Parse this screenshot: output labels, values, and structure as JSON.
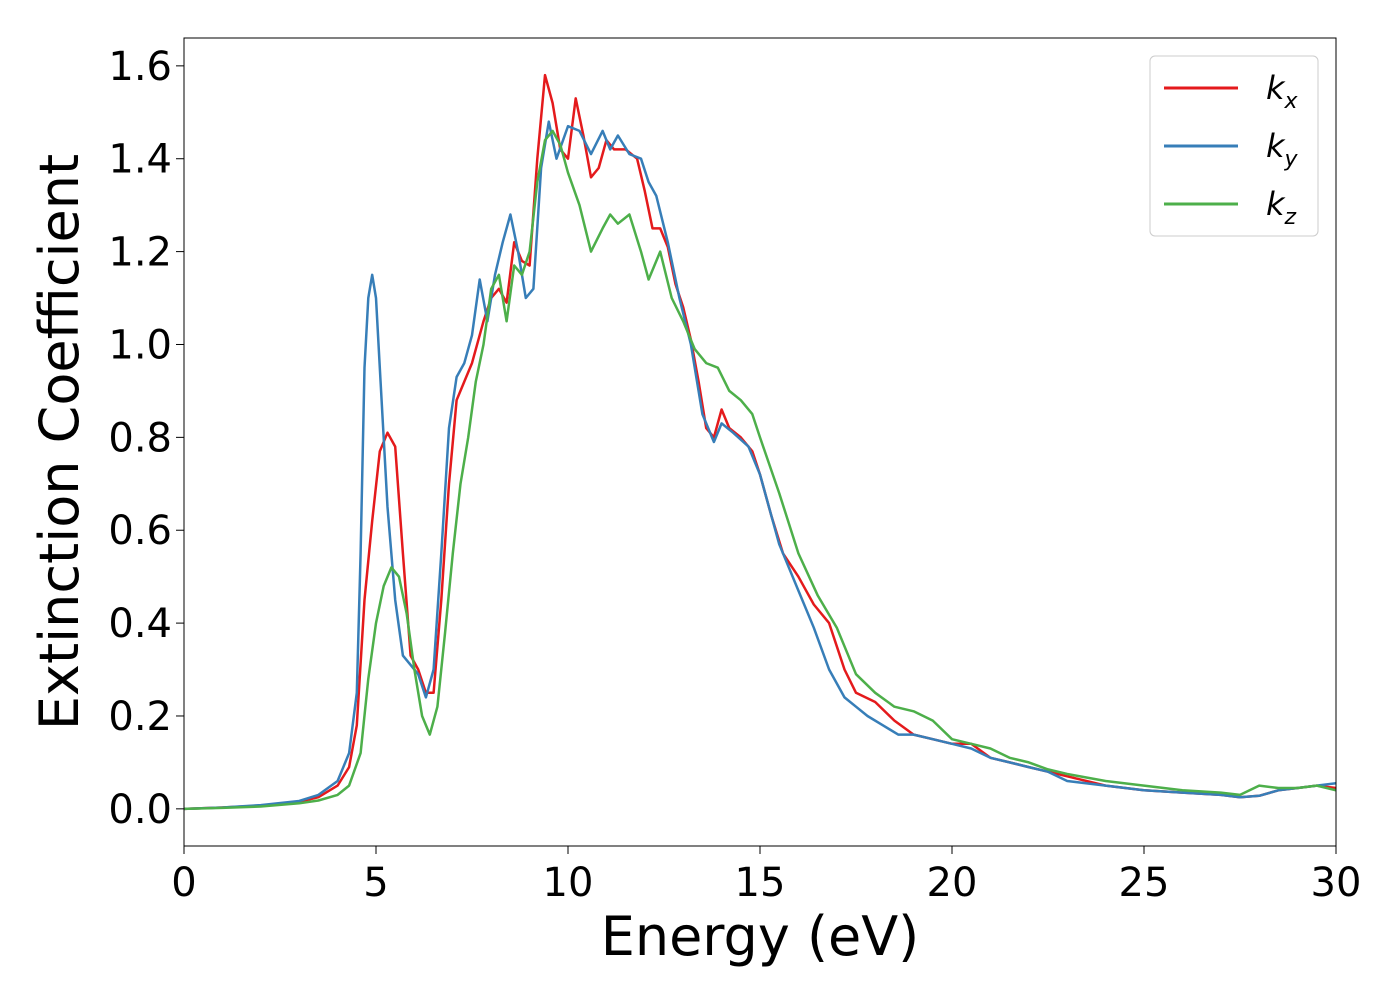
{
  "chart_data": {
    "type": "line",
    "title": "",
    "xlabel": "Energy (eV)",
    "ylabel": "Extinction Coefficient",
    "xlim": [
      0,
      30
    ],
    "ylim": [
      -0.08,
      1.66
    ],
    "xticks": [
      0,
      5,
      10,
      15,
      20,
      25,
      30
    ],
    "xtick_labels": [
      "0",
      "5",
      "10",
      "15",
      "20",
      "25",
      "30"
    ],
    "yticks": [
      0.0,
      0.2,
      0.4,
      0.6,
      0.8,
      1.0,
      1.2,
      1.4,
      1.6
    ],
    "ytick_labels": [
      "0.0",
      "0.2",
      "0.4",
      "0.6",
      "0.8",
      "1.0",
      "1.2",
      "1.4",
      "1.6"
    ],
    "grid": false,
    "legend_position": "top-right",
    "series": [
      {
        "name": "k_x",
        "label_base": "k",
        "label_sub": "x",
        "color": "#e41a1c",
        "x": [
          0,
          1,
          2,
          3,
          3.5,
          4,
          4.3,
          4.5,
          4.7,
          4.9,
          5.1,
          5.3,
          5.5,
          5.7,
          5.9,
          6.1,
          6.3,
          6.5,
          6.7,
          6.9,
          7.1,
          7.3,
          7.5,
          7.8,
          8.0,
          8.2,
          8.4,
          8.6,
          8.8,
          9.0,
          9.2,
          9.4,
          9.6,
          9.8,
          10.0,
          10.2,
          10.4,
          10.6,
          10.8,
          11.0,
          11.2,
          11.5,
          11.8,
          12.0,
          12.2,
          12.4,
          12.6,
          12.8,
          13.0,
          13.2,
          13.4,
          13.6,
          13.8,
          14.0,
          14.2,
          14.5,
          14.8,
          15.0,
          15.3,
          15.6,
          16.0,
          16.4,
          16.8,
          17.0,
          17.2,
          17.5,
          18.0,
          18.5,
          19.0,
          19.5,
          20.0,
          20.5,
          21.0,
          21.5,
          22.0,
          22.5,
          23.0,
          24.0,
          25.0,
          26.0,
          27.0,
          27.5,
          28.0,
          28.5,
          29.0,
          29.5,
          30.0
        ],
        "y": [
          0.0,
          0.003,
          0.007,
          0.015,
          0.025,
          0.05,
          0.09,
          0.18,
          0.45,
          0.62,
          0.77,
          0.81,
          0.78,
          0.55,
          0.33,
          0.3,
          0.25,
          0.25,
          0.45,
          0.7,
          0.88,
          0.92,
          0.96,
          1.05,
          1.1,
          1.12,
          1.09,
          1.22,
          1.18,
          1.17,
          1.4,
          1.58,
          1.52,
          1.42,
          1.4,
          1.53,
          1.45,
          1.36,
          1.38,
          1.44,
          1.42,
          1.42,
          1.4,
          1.33,
          1.25,
          1.25,
          1.21,
          1.13,
          1.08,
          1.01,
          0.92,
          0.82,
          0.8,
          0.86,
          0.82,
          0.8,
          0.77,
          0.72,
          0.63,
          0.55,
          0.5,
          0.44,
          0.4,
          0.35,
          0.3,
          0.25,
          0.23,
          0.19,
          0.16,
          0.15,
          0.14,
          0.14,
          0.11,
          0.1,
          0.09,
          0.08,
          0.07,
          0.05,
          0.04,
          0.035,
          0.03,
          0.025,
          0.028,
          0.04,
          0.045,
          0.05,
          0.045
        ]
      },
      {
        "name": "k_y",
        "label_base": "k",
        "label_sub": "y",
        "color": "#377eb8",
        "x": [
          0,
          1,
          2,
          3,
          3.5,
          4,
          4.3,
          4.5,
          4.6,
          4.7,
          4.8,
          4.9,
          5.0,
          5.1,
          5.3,
          5.5,
          5.7,
          5.9,
          6.1,
          6.3,
          6.5,
          6.7,
          6.9,
          7.1,
          7.3,
          7.5,
          7.7,
          7.9,
          8.1,
          8.3,
          8.5,
          8.7,
          8.9,
          9.1,
          9.3,
          9.5,
          9.7,
          10.0,
          10.3,
          10.6,
          10.9,
          11.1,
          11.3,
          11.6,
          11.9,
          12.1,
          12.3,
          12.6,
          12.9,
          13.2,
          13.5,
          13.8,
          14.0,
          14.3,
          14.7,
          15.0,
          15.5,
          16.0,
          16.4,
          16.8,
          17.2,
          17.5,
          17.8,
          18.2,
          18.6,
          19.0,
          19.5,
          20.0,
          20.5,
          21.0,
          21.5,
          22.0,
          22.5,
          23.0,
          24.0,
          25.0,
          26.0,
          27.0,
          27.5,
          28.0,
          28.5,
          29.0,
          29.5,
          30.0
        ],
        "y": [
          0.0,
          0.003,
          0.008,
          0.017,
          0.03,
          0.06,
          0.12,
          0.25,
          0.55,
          0.95,
          1.1,
          1.15,
          1.1,
          0.95,
          0.65,
          0.45,
          0.33,
          0.31,
          0.29,
          0.24,
          0.3,
          0.55,
          0.82,
          0.93,
          0.96,
          1.02,
          1.14,
          1.05,
          1.15,
          1.22,
          1.28,
          1.2,
          1.1,
          1.12,
          1.38,
          1.48,
          1.4,
          1.47,
          1.46,
          1.41,
          1.46,
          1.42,
          1.45,
          1.41,
          1.4,
          1.35,
          1.32,
          1.22,
          1.1,
          1.0,
          0.85,
          0.79,
          0.83,
          0.81,
          0.78,
          0.72,
          0.57,
          0.47,
          0.39,
          0.3,
          0.24,
          0.22,
          0.2,
          0.18,
          0.16,
          0.16,
          0.15,
          0.14,
          0.13,
          0.11,
          0.1,
          0.09,
          0.08,
          0.06,
          0.05,
          0.04,
          0.035,
          0.03,
          0.025,
          0.028,
          0.04,
          0.045,
          0.05,
          0.055
        ]
      },
      {
        "name": "k_z",
        "label_base": "k",
        "label_sub": "z",
        "color": "#4daf4a",
        "x": [
          0,
          1,
          2,
          3,
          3.5,
          4,
          4.3,
          4.6,
          4.8,
          5.0,
          5.2,
          5.4,
          5.6,
          5.8,
          6.0,
          6.2,
          6.4,
          6.6,
          6.8,
          7.0,
          7.2,
          7.4,
          7.6,
          7.8,
          8.0,
          8.2,
          8.4,
          8.6,
          8.8,
          9.0,
          9.2,
          9.4,
          9.6,
          9.8,
          10.0,
          10.3,
          10.6,
          10.9,
          11.1,
          11.3,
          11.6,
          11.9,
          12.1,
          12.4,
          12.7,
          13.0,
          13.3,
          13.6,
          13.9,
          14.2,
          14.5,
          14.8,
          15.0,
          15.5,
          16.0,
          16.5,
          17.0,
          17.5,
          18.0,
          18.5,
          19.0,
          19.5,
          20.0,
          20.5,
          21.0,
          21.5,
          22.0,
          22.5,
          23.0,
          24.0,
          25.0,
          26.0,
          27.0,
          27.5,
          28.0,
          28.5,
          29.0,
          29.5,
          30.0
        ],
        "y": [
          0.0,
          0.002,
          0.005,
          0.012,
          0.018,
          0.03,
          0.05,
          0.12,
          0.28,
          0.4,
          0.48,
          0.52,
          0.5,
          0.42,
          0.3,
          0.2,
          0.16,
          0.22,
          0.38,
          0.55,
          0.7,
          0.8,
          0.92,
          1.0,
          1.12,
          1.15,
          1.05,
          1.17,
          1.15,
          1.2,
          1.35,
          1.44,
          1.46,
          1.43,
          1.37,
          1.3,
          1.2,
          1.25,
          1.28,
          1.26,
          1.28,
          1.2,
          1.14,
          1.2,
          1.1,
          1.05,
          0.99,
          0.96,
          0.95,
          0.9,
          0.88,
          0.85,
          0.8,
          0.68,
          0.55,
          0.46,
          0.39,
          0.29,
          0.25,
          0.22,
          0.21,
          0.19,
          0.15,
          0.14,
          0.13,
          0.11,
          0.1,
          0.085,
          0.075,
          0.06,
          0.05,
          0.04,
          0.035,
          0.03,
          0.05,
          0.045,
          0.045,
          0.05,
          0.04
        ]
      }
    ]
  }
}
